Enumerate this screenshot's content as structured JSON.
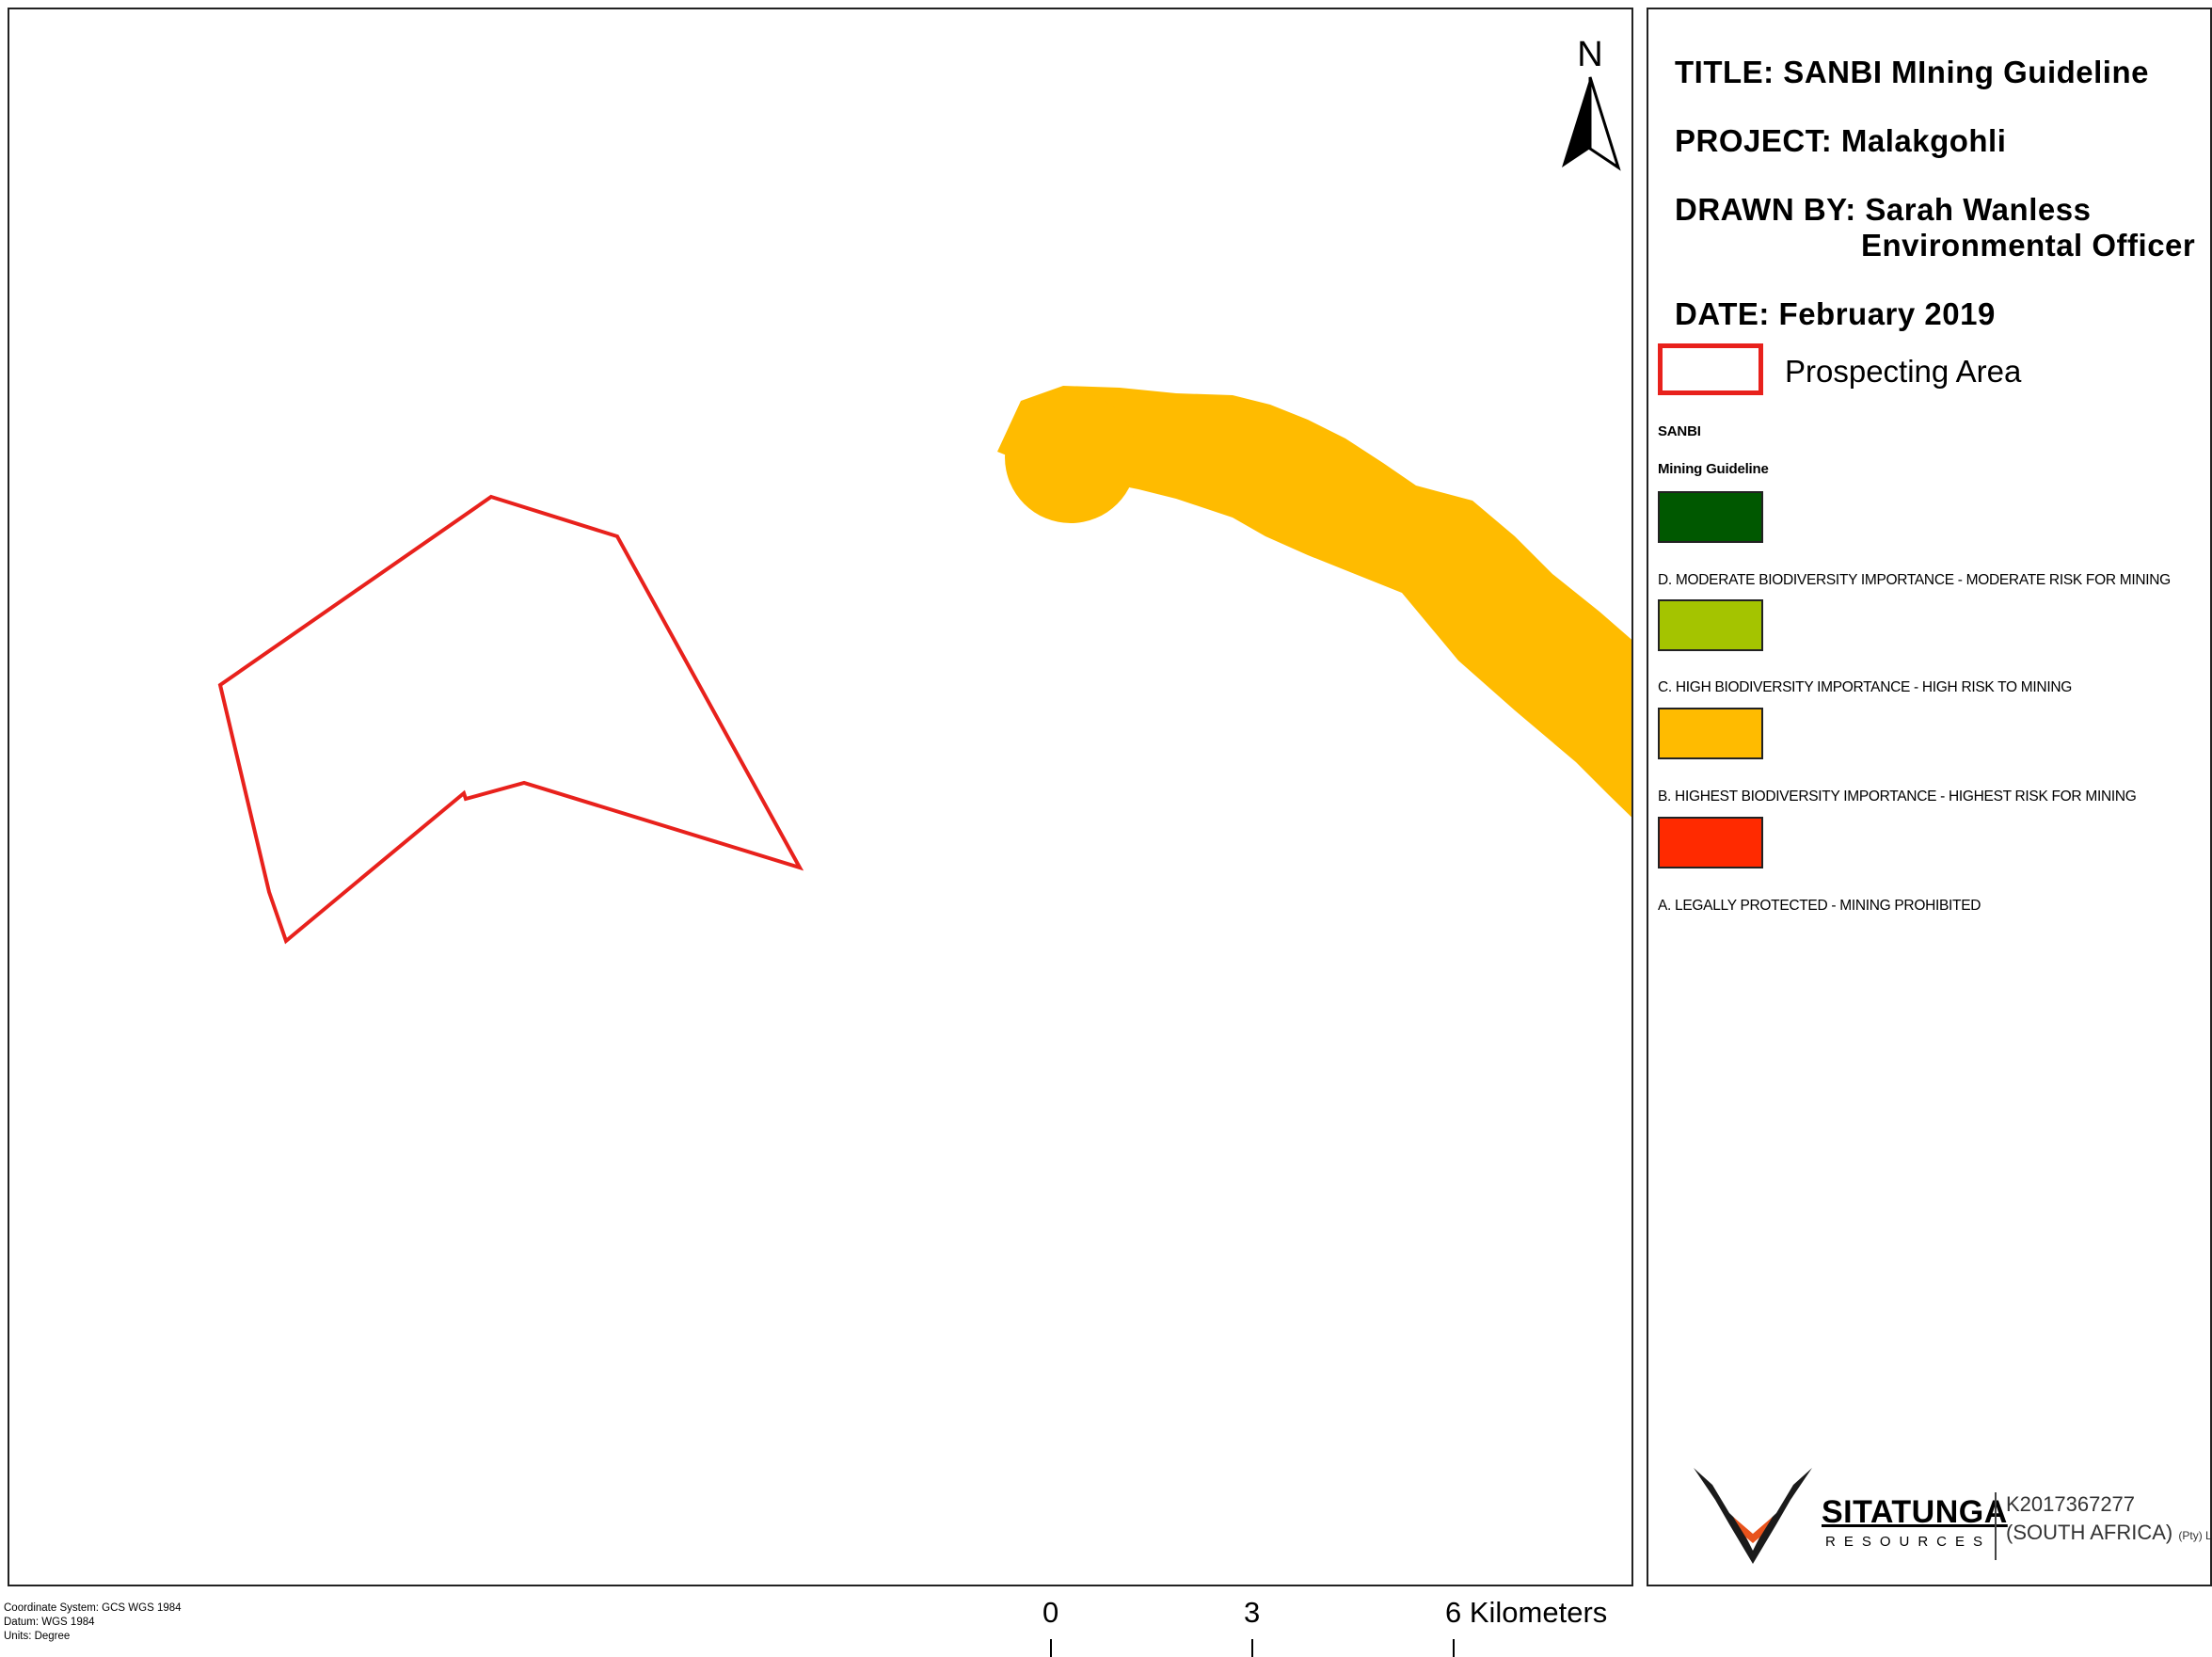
{
  "map": {
    "colors": {
      "prospecting_outline": "#e8211c",
      "highest_risk_fill": "#ffbb00",
      "background": "#ffffff"
    },
    "north_arrow": {
      "letter": "N",
      "icon": "north-arrow-icon"
    }
  },
  "legend": {
    "title": "TITLE: SANBI MIning Guideline",
    "project": "PROJECT: Malakgohli",
    "drawn_by": "DRAWN BY: Sarah Wanless",
    "drawn_by_role": "Environmental Officer",
    "date": "DATE: February 2019",
    "prospecting_label": "Prospecting Area",
    "sanbi_label": "SANBI",
    "guideline_label": "Mining Guideline",
    "classes": [
      {
        "label": "D. MODERATE BIODIVERSITY IMPORTANCE - MODERATE RISK FOR MINING",
        "color": "#005800"
      },
      {
        "label": "C. HIGH BIODIVERSITY IMPORTANCE - HIGH RISK TO MINING",
        "color": "#a4c400"
      },
      {
        "label": "B. HIGHEST BIODIVERSITY IMPORTANCE - HIGHEST RISK FOR MINING",
        "color": "#ffbb00"
      },
      {
        "label": "A. LEGALLY PROTECTED - MINING PROHIBITED",
        "color": "#ff2a00"
      }
    ]
  },
  "logo": {
    "name": "SITATUNGA",
    "sub": "RESOURCES",
    "reg": "K2017367277",
    "country": "(SOUTH AFRICA)",
    "suffix": "(Pty) Ltd"
  },
  "footer": {
    "coordinate_system": "Coordinate System: GCS WGS 1984",
    "datum": "Datum: WGS 1984",
    "units": "Units: Degree",
    "scale": [
      "0",
      "3",
      "6 Kilometers"
    ]
  }
}
